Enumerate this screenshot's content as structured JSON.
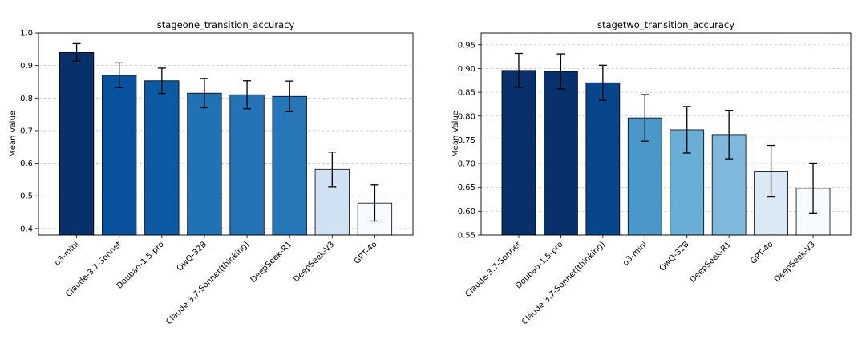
{
  "chart_data": [
    {
      "type": "bar",
      "title": "stageone_transition_accuracy",
      "xlabel": "",
      "ylabel": "Mean Value",
      "ylim": [
        0.38,
        1.0
      ],
      "yticks": [
        "0.4",
        "0.5",
        "0.6",
        "0.7",
        "0.8",
        "0.9",
        "1.0"
      ],
      "ytick_values": [
        0.4,
        0.5,
        0.6,
        0.7,
        0.8,
        0.9,
        1.0
      ],
      "grid": true,
      "categories": [
        "o3-mini",
        "Claude-3.7-Sonnet",
        "Doubao-1.5-pro",
        "QwQ-32B",
        "Claude-3.7-Sonnet(thinking)",
        "DeepSeek-R1",
        "DeepSeek-V3",
        "GPT-4o"
      ],
      "values": [
        0.94,
        0.87,
        0.853,
        0.815,
        0.81,
        0.805,
        0.581,
        0.478
      ],
      "errors": [
        0.027,
        0.038,
        0.039,
        0.045,
        0.043,
        0.047,
        0.053,
        0.055
      ],
      "colors": [
        "#08306b",
        "#08519c",
        "#0b5aa3",
        "#2171b5",
        "#2373b6",
        "#2676b8",
        "#cfe1f2",
        "#f7fbff"
      ]
    },
    {
      "type": "bar",
      "title": "stagetwo_transition_accuracy",
      "xlabel": "",
      "ylabel": "Mean Value",
      "ylim": [
        0.55,
        0.975
      ],
      "yticks": [
        "0.55",
        "0.60",
        "0.65",
        "0.70",
        "0.75",
        "0.80",
        "0.85",
        "0.90",
        "0.95"
      ],
      "ytick_values": [
        0.55,
        0.6,
        0.65,
        0.7,
        0.75,
        0.8,
        0.85,
        0.9,
        0.95
      ],
      "grid": true,
      "categories": [
        "Claude-3.7-Sonnet",
        "Doubao-1.5-pro",
        "Claude-3.7-Sonnet(thinking)",
        "o3-mini",
        "QwQ-32B",
        "DeepSeek-R1",
        "GPT-4o",
        "DeepSeek-V3"
      ],
      "values": [
        0.896,
        0.894,
        0.87,
        0.796,
        0.771,
        0.761,
        0.684,
        0.648
      ],
      "errors": [
        0.036,
        0.037,
        0.037,
        0.049,
        0.049,
        0.051,
        0.054,
        0.053
      ],
      "colors": [
        "#08306b",
        "#08306b",
        "#08468b",
        "#4a98c9",
        "#6aaed6",
        "#7fb8da",
        "#dbe9f6",
        "#f7fbff"
      ]
    }
  ]
}
